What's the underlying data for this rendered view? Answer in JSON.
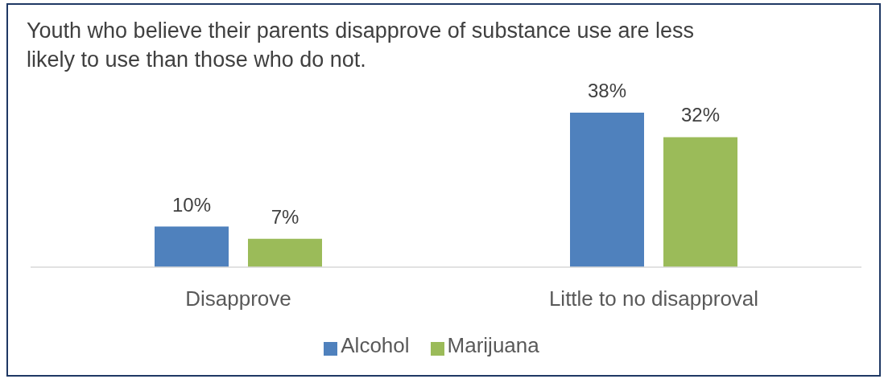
{
  "chart_data": {
    "type": "bar",
    "title": "Youth who believe their parents disapprove of substance use are less likely to use than those who do not.",
    "categories": [
      "Disapprove",
      "Little to no disapproval"
    ],
    "series": [
      {
        "name": "Alcohol",
        "color": "#4f81bd",
        "values": [
          10,
          38
        ],
        "value_labels": [
          "10%",
          "38%"
        ]
      },
      {
        "name": "Marijuana",
        "color": "#9bbb59",
        "values": [
          7,
          32
        ],
        "value_labels": [
          "7%",
          "32%"
        ]
      }
    ],
    "legend": "bottom",
    "tick_labels": "x"
  }
}
